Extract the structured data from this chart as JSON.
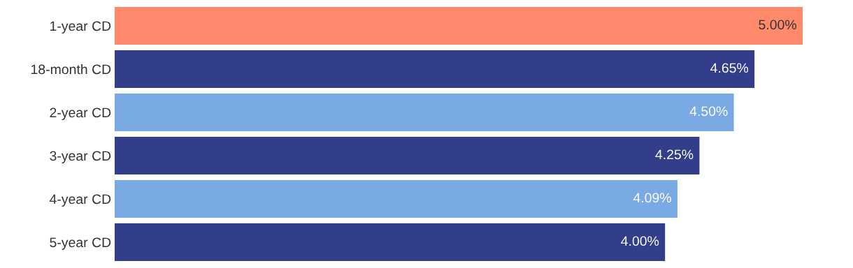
{
  "chart_data": {
    "type": "bar",
    "orientation": "horizontal",
    "categories": [
      "1-year CD",
      "18-month CD",
      "2-year CD",
      "3-year CD",
      "4-year CD",
      "5-year CD"
    ],
    "values": [
      5.0,
      4.65,
      4.5,
      4.25,
      4.09,
      4.0
    ],
    "colors": [
      "#ff8a6b",
      "#323e8a",
      "#7aaae4",
      "#323e8a",
      "#7aaae4",
      "#323e8a"
    ],
    "value_labels": [
      "5.00%",
      "4.65%",
      "4.50%",
      "4.25%",
      "4.09%",
      "4.00%"
    ],
    "tick_labels": "y",
    "grid": false,
    "legend": false
  }
}
